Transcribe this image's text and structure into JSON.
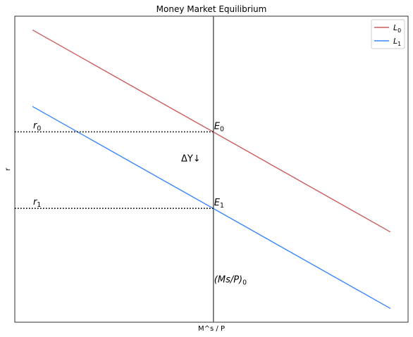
{
  "chart_data": {
    "type": "line",
    "title": "Money Market Equilibrium",
    "xlabel": "M^s / P",
    "ylabel": "r",
    "xlim": [
      0,
      10
    ],
    "ylim": [
      0,
      10
    ],
    "grid": false,
    "legend_position": "top-right",
    "series": [
      {
        "name": "L",
        "subscript": "0",
        "color": "#cd5c5c",
        "x": [
          0.45,
          9.55
        ],
        "y": [
          9.55,
          2.95
        ]
      },
      {
        "name": "L",
        "subscript": "1",
        "color": "#3a86ff",
        "x": [
          0.45,
          9.55
        ],
        "y": [
          7.05,
          0.45
        ]
      }
    ],
    "supply_line": {
      "x": 5.05,
      "color": "#666666",
      "label": "(Ms/P)",
      "label_sub": "0",
      "label_y": 1.3
    },
    "equilibria": [
      {
        "name": "E",
        "sub": "0",
        "x": 5.05,
        "y": 6.22,
        "rate_label": "r",
        "rate_sub": "0"
      },
      {
        "name": "E",
        "sub": "1",
        "x": 5.05,
        "y": 3.72,
        "rate_label": "r",
        "rate_sub": "1"
      }
    ],
    "shift_annotation": {
      "text": "ΔY↓",
      "x": 4.3,
      "y": 5.25
    }
  }
}
